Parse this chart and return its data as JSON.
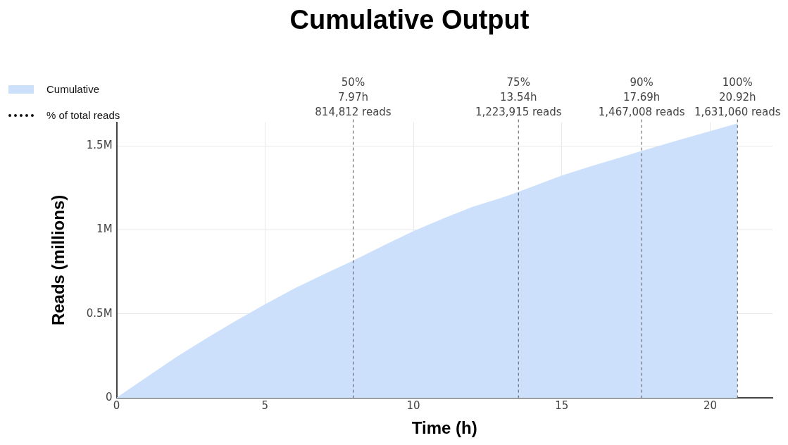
{
  "chart_data": {
    "type": "area",
    "title": "Cumulative Output",
    "xlabel": "Time (h)",
    "ylabel": "Reads (millions)",
    "x": [
      0,
      1,
      2,
      3,
      4,
      5,
      6,
      7,
      7.97,
      9,
      10,
      11,
      12,
      13,
      13.54,
      15,
      16,
      17,
      17.69,
      19,
      20,
      20.92
    ],
    "series": [
      {
        "name": "Cumulative",
        "color": "#cce0fc",
        "values": [
          0,
          120000,
          240000,
          350000,
          455000,
          555000,
          650000,
          735000,
          814812,
          905000,
          990000,
          1065000,
          1135000,
          1190000,
          1223915,
          1321000,
          1377000,
          1430000,
          1467008,
          1535000,
          1585000,
          1631060
        ]
      }
    ],
    "xlim": [
      0,
      22.1
    ],
    "xticks": [
      0,
      5,
      10,
      15,
      20
    ],
    "ylim": [
      0,
      1640000
    ],
    "yticks": [
      0,
      {
        "value": 500000,
        "label": "0.5M"
      },
      {
        "value": 1000000,
        "label": "1M"
      },
      {
        "value": 1500000,
        "label": "1.5M"
      }
    ],
    "ref_lines": [
      {
        "axis": "x",
        "value": 7.97,
        "label": "50%\n7.97h\n814,812 reads",
        "color": "#555555",
        "line_style": "dashed"
      },
      {
        "axis": "x",
        "value": 13.54,
        "label": "75%\n13.54h\n1,223,915 reads",
        "color": "#555555",
        "line_style": "dashed"
      },
      {
        "axis": "x",
        "value": 17.69,
        "label": "90%\n17.69h\n1,467,008 reads",
        "color": "#555555",
        "line_style": "dashed"
      },
      {
        "axis": "x",
        "value": 20.92,
        "label": "100%\n20.92h\n1,631,060 reads",
        "color": "#555555",
        "line_style": "dashed"
      }
    ],
    "annotations": [
      "% of total reads"
    ],
    "marker": "none",
    "grid": true,
    "legend": "top left"
  }
}
